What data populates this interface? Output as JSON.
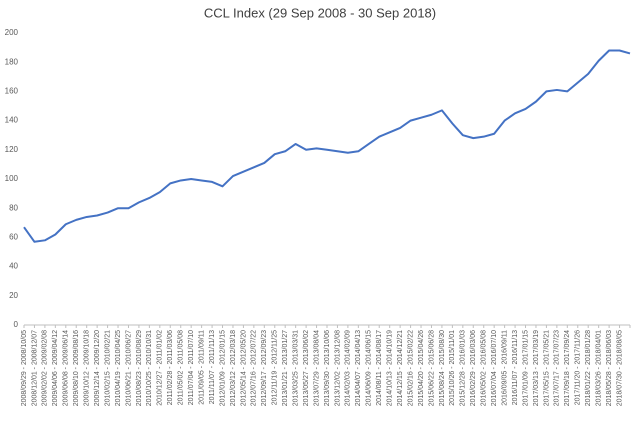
{
  "chart_data": {
    "type": "line",
    "title": "CCL Index (29 Sep 2008 - 30 Sep 2018)",
    "categories": [
      "2008/09/29 - 2008/10/05",
      "2008/12/01 - 2008/12/07",
      "2009/02/02 - 2009/02/08",
      "2009/04/06 - 2009/04/12",
      "2009/06/08 - 2009/06/14",
      "2009/08/10 - 2009/08/16",
      "2009/10/12 - 2009/10/18",
      "2009/12/14 - 2009/12/20",
      "2010/02/15 - 2010/02/21",
      "2010/04/19 - 2010/04/25",
      "2010/06/21 - 2010/06/27",
      "2010/08/23 - 2010/08/29",
      "2010/10/25 - 2010/10/31",
      "2010/12/27 - 2011/01/02",
      "2011/02/28 - 2011/03/06",
      "2011/05/02 - 2011/05/08",
      "2011/07/04 - 2011/07/10",
      "2011/09/05 - 2011/09/11",
      "2011/11/07 - 2011/11/13",
      "2012/01/09 - 2012/01/15",
      "2012/03/12 - 2012/03/18",
      "2012/05/14 - 2012/05/20",
      "2012/07/16 - 2012/07/22",
      "2012/09/17 - 2012/09/23",
      "2012/11/19 - 2012/11/25",
      "2013/01/21 - 2013/01/27",
      "2013/03/25 - 2013/03/31",
      "2013/05/27 - 2013/06/02",
      "2013/07/29 - 2013/08/04",
      "2013/09/30 - 2013/10/06",
      "2013/12/02 - 2013/12/08",
      "2014/02/03 - 2014/02/09",
      "2014/04/07 - 2014/04/13",
      "2014/06/09 - 2014/06/15",
      "2014/08/11 - 2014/08/17",
      "2014/10/13 - 2014/10/19",
      "2014/12/15 - 2014/12/21",
      "2015/02/16 - 2015/02/22",
      "2015/04/20 - 2015/04/26",
      "2015/06/22 - 2015/06/28",
      "2015/08/24 - 2015/08/30",
      "2015/10/26 - 2015/11/01",
      "2015/12/28 - 2016/01/03",
      "2016/02/29 - 2016/03/06",
      "2016/05/02 - 2016/05/08",
      "2016/07/04 - 2016/07/10",
      "2016/09/05 - 2016/09/11",
      "2016/11/07 - 2016/11/13",
      "2017/01/09 - 2017/01/15",
      "2017/03/13 - 2017/03/19",
      "2017/05/15 - 2017/05/21",
      "2017/07/17 - 2017/07/23",
      "2017/09/18 - 2017/09/24",
      "2017/11/20 - 2017/11/26",
      "2018/01/22 - 2018/01/28",
      "2018/03/26 - 2018/04/01",
      "2018/05/28 - 2018/06/03",
      "2018/07/30 - 2018/08/05",
      null
    ],
    "values": [
      67,
      57,
      58,
      62,
      69,
      72,
      74,
      75,
      77,
      80,
      80,
      84,
      87,
      91,
      97,
      99,
      100,
      99,
      98,
      95,
      102,
      105,
      108,
      111,
      117,
      119,
      124,
      120,
      121,
      120,
      119,
      118,
      119,
      124,
      129,
      132,
      135,
      140,
      142,
      144,
      147,
      138,
      130,
      128,
      129,
      131,
      140,
      145,
      148,
      153,
      160,
      161,
      160,
      166,
      172,
      181,
      188,
      188,
      186
    ],
    "color": "#4472c4",
    "ylim": [
      0,
      200
    ],
    "yticks": [
      0,
      20,
      40,
      60,
      80,
      100,
      120,
      140,
      160,
      180,
      200
    ]
  }
}
